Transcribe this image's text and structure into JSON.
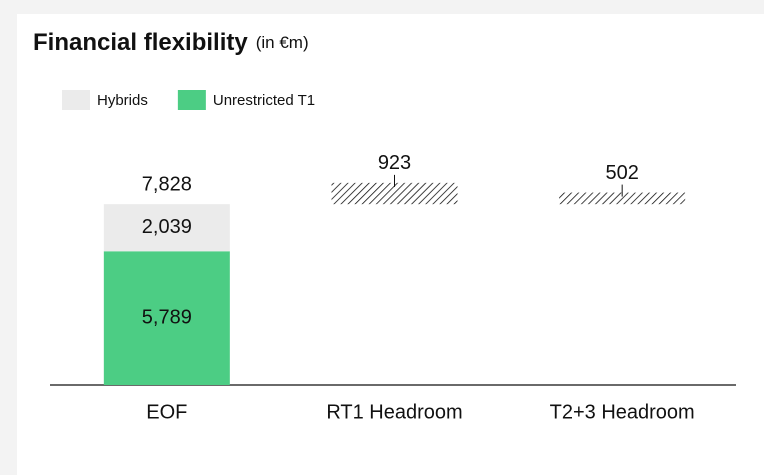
{
  "chart_data": {
    "type": "bar",
    "stacked": true,
    "title": "Financial flexibility",
    "subtitle": "(in €m)",
    "categories": [
      "EOF",
      "RT1 Headroom",
      "T2+3 Headroom"
    ],
    "series": [
      {
        "name": "Hybrids",
        "color": "#ebebeb",
        "values": [
          2039,
          null,
          null
        ],
        "value_labels": [
          "2,039",
          null,
          null
        ]
      },
      {
        "name": "Unrestricted T1",
        "color": "#4ccd84",
        "values": [
          5789,
          null,
          null
        ],
        "value_labels": [
          "5,789",
          null,
          null
        ]
      }
    ],
    "totals": [
      7828,
      null,
      null
    ],
    "total_labels": [
      "7,828",
      null,
      null
    ],
    "headroom": {
      "color": "#111111",
      "values": [
        null,
        923,
        502
      ],
      "value_labels": [
        null,
        "923",
        "502"
      ]
    },
    "ylim": [
      0,
      10000
    ]
  }
}
